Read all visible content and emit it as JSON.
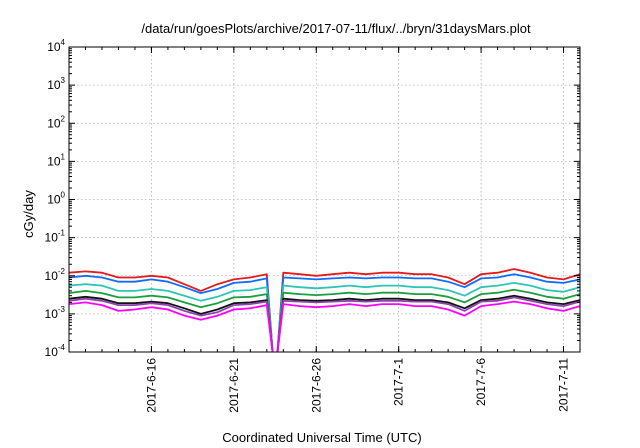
{
  "chart_data": {
    "type": "line",
    "title": "/data/run/goesPlots/archive/2017-07-11/flux/../bryn/31daysMars.plot",
    "xlabel": "Coordinated Universal Time (UTC)",
    "ylabel": "cGy/day",
    "y_scale": "log",
    "ylim": [
      0.0001,
      10000
    ],
    "xlim": [
      "2017-06-11",
      "2017-07-12"
    ],
    "y_ticks": [
      {
        "base": "10",
        "exp": "-4",
        "value": 0.0001
      },
      {
        "base": "10",
        "exp": "-3",
        "value": 0.001
      },
      {
        "base": "10",
        "exp": "-2",
        "value": 0.01
      },
      {
        "base": "10",
        "exp": "-1",
        "value": 0.1
      },
      {
        "base": "10",
        "exp": "0",
        "value": 1
      },
      {
        "base": "10",
        "exp": "1",
        "value": 10
      },
      {
        "base": "10",
        "exp": "2",
        "value": 100
      },
      {
        "base": "10",
        "exp": "3",
        "value": 1000
      },
      {
        "base": "10",
        "exp": "4",
        "value": 10000
      }
    ],
    "x_ticks": [
      {
        "label": "2017-6-16",
        "date": "2017-06-16"
      },
      {
        "label": "2017-6-21",
        "date": "2017-06-21"
      },
      {
        "label": "2017-6-26",
        "date": "2017-06-26"
      },
      {
        "label": "2017-7-1",
        "date": "2017-07-01"
      },
      {
        "label": "2017-7-6",
        "date": "2017-07-06"
      },
      {
        "label": "2017-7-11",
        "date": "2017-07-11"
      }
    ],
    "grid": true,
    "data_gap": [
      "2017-06-23",
      "2017-06-24"
    ],
    "series": [
      {
        "color": "#e41a1c",
        "x": [
          "2017-06-11",
          "2017-06-12",
          "2017-06-13",
          "2017-06-14",
          "2017-06-15",
          "2017-06-16",
          "2017-06-17",
          "2017-06-18",
          "2017-06-19",
          "2017-06-20",
          "2017-06-21",
          "2017-06-22",
          "2017-06-23",
          "2017-06-24",
          "2017-06-25",
          "2017-06-26",
          "2017-06-27",
          "2017-06-28",
          "2017-06-29",
          "2017-06-30",
          "2017-07-01",
          "2017-07-02",
          "2017-07-03",
          "2017-07-04",
          "2017-07-05",
          "2017-07-06",
          "2017-07-07",
          "2017-07-08",
          "2017-07-09",
          "2017-07-10",
          "2017-07-11",
          "2017-07-12"
        ],
        "values": [
          0.012,
          0.013,
          0.012,
          0.009,
          0.009,
          0.01,
          0.009,
          0.006,
          0.004,
          0.006,
          0.008,
          0.009,
          0.011,
          0.012,
          0.011,
          0.01,
          0.011,
          0.012,
          0.011,
          0.012,
          0.012,
          0.011,
          0.011,
          0.009,
          0.006,
          0.011,
          0.012,
          0.015,
          0.012,
          0.009,
          0.008,
          0.011
        ]
      },
      {
        "color": "#0d6efd",
        "x": [
          "2017-06-11",
          "2017-06-12",
          "2017-06-13",
          "2017-06-14",
          "2017-06-15",
          "2017-06-16",
          "2017-06-17",
          "2017-06-18",
          "2017-06-19",
          "2017-06-20",
          "2017-06-21",
          "2017-06-22",
          "2017-06-23",
          "2017-06-24",
          "2017-06-25",
          "2017-06-26",
          "2017-06-27",
          "2017-06-28",
          "2017-06-29",
          "2017-06-30",
          "2017-07-01",
          "2017-07-02",
          "2017-07-03",
          "2017-07-04",
          "2017-07-05",
          "2017-07-06",
          "2017-07-07",
          "2017-07-08",
          "2017-07-09",
          "2017-07-10",
          "2017-07-11",
          "2017-07-12"
        ],
        "values": [
          0.009,
          0.01,
          0.009,
          0.007,
          0.007,
          0.008,
          0.007,
          0.005,
          0.0035,
          0.0045,
          0.0065,
          0.007,
          0.0085,
          0.009,
          0.0085,
          0.008,
          0.0085,
          0.009,
          0.0085,
          0.009,
          0.009,
          0.0085,
          0.0085,
          0.007,
          0.005,
          0.0085,
          0.009,
          0.011,
          0.009,
          0.007,
          0.0065,
          0.008
        ]
      },
      {
        "color": "#2ec4b6",
        "x": [
          "2017-06-11",
          "2017-06-12",
          "2017-06-13",
          "2017-06-14",
          "2017-06-15",
          "2017-06-16",
          "2017-06-17",
          "2017-06-18",
          "2017-06-19",
          "2017-06-20",
          "2017-06-21",
          "2017-06-22",
          "2017-06-23",
          "2017-06-24",
          "2017-06-25",
          "2017-06-26",
          "2017-06-27",
          "2017-06-28",
          "2017-06-29",
          "2017-06-30",
          "2017-07-01",
          "2017-07-02",
          "2017-07-03",
          "2017-07-04",
          "2017-07-05",
          "2017-07-06",
          "2017-07-07",
          "2017-07-08",
          "2017-07-09",
          "2017-07-10",
          "2017-07-11",
          "2017-07-12"
        ],
        "values": [
          0.0055,
          0.006,
          0.0055,
          0.004,
          0.004,
          0.0045,
          0.004,
          0.003,
          0.0022,
          0.0028,
          0.004,
          0.0042,
          0.005,
          0.0055,
          0.005,
          0.0047,
          0.005,
          0.0055,
          0.005,
          0.0055,
          0.0055,
          0.005,
          0.005,
          0.0042,
          0.003,
          0.005,
          0.0055,
          0.0065,
          0.0055,
          0.0042,
          0.0038,
          0.005
        ]
      },
      {
        "color": "#1b9e3e",
        "x": [
          "2017-06-11",
          "2017-06-12",
          "2017-06-13",
          "2017-06-14",
          "2017-06-15",
          "2017-06-16",
          "2017-06-17",
          "2017-06-18",
          "2017-06-19",
          "2017-06-20",
          "2017-06-21",
          "2017-06-22",
          "2017-06-23",
          "2017-06-24",
          "2017-06-25",
          "2017-06-26",
          "2017-06-27",
          "2017-06-28",
          "2017-06-29",
          "2017-06-30",
          "2017-07-01",
          "2017-07-02",
          "2017-07-03",
          "2017-07-04",
          "2017-07-05",
          "2017-07-06",
          "2017-07-07",
          "2017-07-08",
          "2017-07-09",
          "2017-07-10",
          "2017-07-11",
          "2017-07-12"
        ],
        "values": [
          0.0035,
          0.004,
          0.0035,
          0.0027,
          0.0027,
          0.003,
          0.0027,
          0.002,
          0.0015,
          0.0019,
          0.0027,
          0.0028,
          0.0033,
          0.0036,
          0.0033,
          0.0031,
          0.0033,
          0.0036,
          0.0033,
          0.0036,
          0.0036,
          0.0033,
          0.0033,
          0.0028,
          0.002,
          0.0033,
          0.0036,
          0.0043,
          0.0036,
          0.0028,
          0.0025,
          0.0033
        ]
      },
      {
        "color": "#111111",
        "x": [
          "2017-06-11",
          "2017-06-12",
          "2017-06-13",
          "2017-06-14",
          "2017-06-15",
          "2017-06-16",
          "2017-06-17",
          "2017-06-18",
          "2017-06-19",
          "2017-06-20",
          "2017-06-21",
          "2017-06-22",
          "2017-06-23",
          "2017-06-24",
          "2017-06-25",
          "2017-06-26",
          "2017-06-27",
          "2017-06-28",
          "2017-06-29",
          "2017-06-30",
          "2017-07-01",
          "2017-07-02",
          "2017-07-03",
          "2017-07-04",
          "2017-07-05",
          "2017-07-06",
          "2017-07-07",
          "2017-07-08",
          "2017-07-09",
          "2017-07-10",
          "2017-07-11",
          "2017-07-12"
        ],
        "values": [
          0.0025,
          0.0028,
          0.0025,
          0.0019,
          0.0019,
          0.0021,
          0.0019,
          0.0014,
          0.001,
          0.0013,
          0.0019,
          0.002,
          0.0023,
          0.0025,
          0.0023,
          0.0022,
          0.0023,
          0.0025,
          0.0023,
          0.0025,
          0.0025,
          0.0023,
          0.0023,
          0.002,
          0.0014,
          0.0023,
          0.0025,
          0.003,
          0.0025,
          0.002,
          0.0018,
          0.0023
        ]
      },
      {
        "color": "#8e44ad",
        "x": [
          "2017-06-11",
          "2017-06-12",
          "2017-06-13",
          "2017-06-14",
          "2017-06-15",
          "2017-06-16",
          "2017-06-17",
          "2017-06-18",
          "2017-06-19",
          "2017-06-20",
          "2017-06-21",
          "2017-06-22",
          "2017-06-23",
          "2017-06-24",
          "2017-06-25",
          "2017-06-26",
          "2017-06-27",
          "2017-06-28",
          "2017-06-29",
          "2017-06-30",
          "2017-07-01",
          "2017-07-02",
          "2017-07-03",
          "2017-07-04",
          "2017-07-05",
          "2017-07-06",
          "2017-07-07",
          "2017-07-08",
          "2017-07-09",
          "2017-07-10",
          "2017-07-11",
          "2017-07-12"
        ],
        "values": [
          0.0022,
          0.0025,
          0.0022,
          0.0017,
          0.0017,
          0.0019,
          0.0017,
          0.0012,
          0.0009,
          0.0011,
          0.0017,
          0.0018,
          0.0021,
          0.0022,
          0.0021,
          0.002,
          0.0021,
          0.0022,
          0.0021,
          0.0022,
          0.0022,
          0.0021,
          0.0021,
          0.0018,
          0.0012,
          0.0021,
          0.0022,
          0.0027,
          0.0022,
          0.0018,
          0.0016,
          0.0021
        ]
      },
      {
        "color": "#ff00ff",
        "x": [
          "2017-06-11",
          "2017-06-12",
          "2017-06-13",
          "2017-06-14",
          "2017-06-15",
          "2017-06-16",
          "2017-06-17",
          "2017-06-18",
          "2017-06-19",
          "2017-06-20",
          "2017-06-21",
          "2017-06-22",
          "2017-06-23",
          "2017-06-24",
          "2017-06-25",
          "2017-06-26",
          "2017-06-27",
          "2017-06-28",
          "2017-06-29",
          "2017-06-30",
          "2017-07-01",
          "2017-07-02",
          "2017-07-03",
          "2017-07-04",
          "2017-07-05",
          "2017-07-06",
          "2017-07-07",
          "2017-07-08",
          "2017-07-09",
          "2017-07-10",
          "2017-07-11",
          "2017-07-12"
        ],
        "values": [
          0.0018,
          0.002,
          0.0017,
          0.0012,
          0.0013,
          0.0015,
          0.0013,
          0.0009,
          0.0007,
          0.0009,
          0.0013,
          0.0014,
          0.0017,
          0.0018,
          0.0016,
          0.0015,
          0.0016,
          0.0018,
          0.0016,
          0.0018,
          0.0018,
          0.0016,
          0.0016,
          0.0013,
          0.0009,
          0.0016,
          0.0018,
          0.0021,
          0.0018,
          0.0014,
          0.0012,
          0.0016
        ]
      }
    ]
  }
}
